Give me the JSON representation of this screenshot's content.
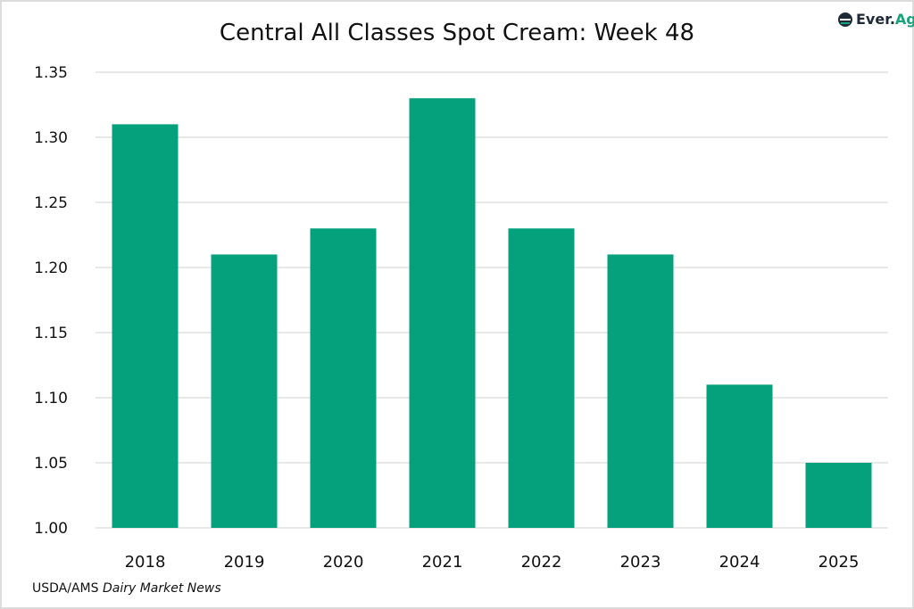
{
  "logo": {
    "text_main": "Ever.",
    "text_accent": "Ag"
  },
  "source": {
    "org": "USDA/AMS",
    "publication": "Dairy Market News"
  },
  "colors": {
    "bar": "#05a07c",
    "grid": "#d0d0d0"
  },
  "chart_data": {
    "type": "bar",
    "title": "Central All Classes Spot Cream: Week 48",
    "xlabel": "",
    "ylabel": "",
    "categories": [
      "2018",
      "2019",
      "2020",
      "2021",
      "2022",
      "2023",
      "2024",
      "2025"
    ],
    "values": [
      1.31,
      1.21,
      1.23,
      1.33,
      1.23,
      1.21,
      1.11,
      1.05
    ],
    "ylim": [
      1.0,
      1.35
    ],
    "yticks": [
      "1.00",
      "1.05",
      "1.10",
      "1.15",
      "1.20",
      "1.25",
      "1.30",
      "1.35"
    ],
    "grid": true,
    "legend": "none"
  }
}
